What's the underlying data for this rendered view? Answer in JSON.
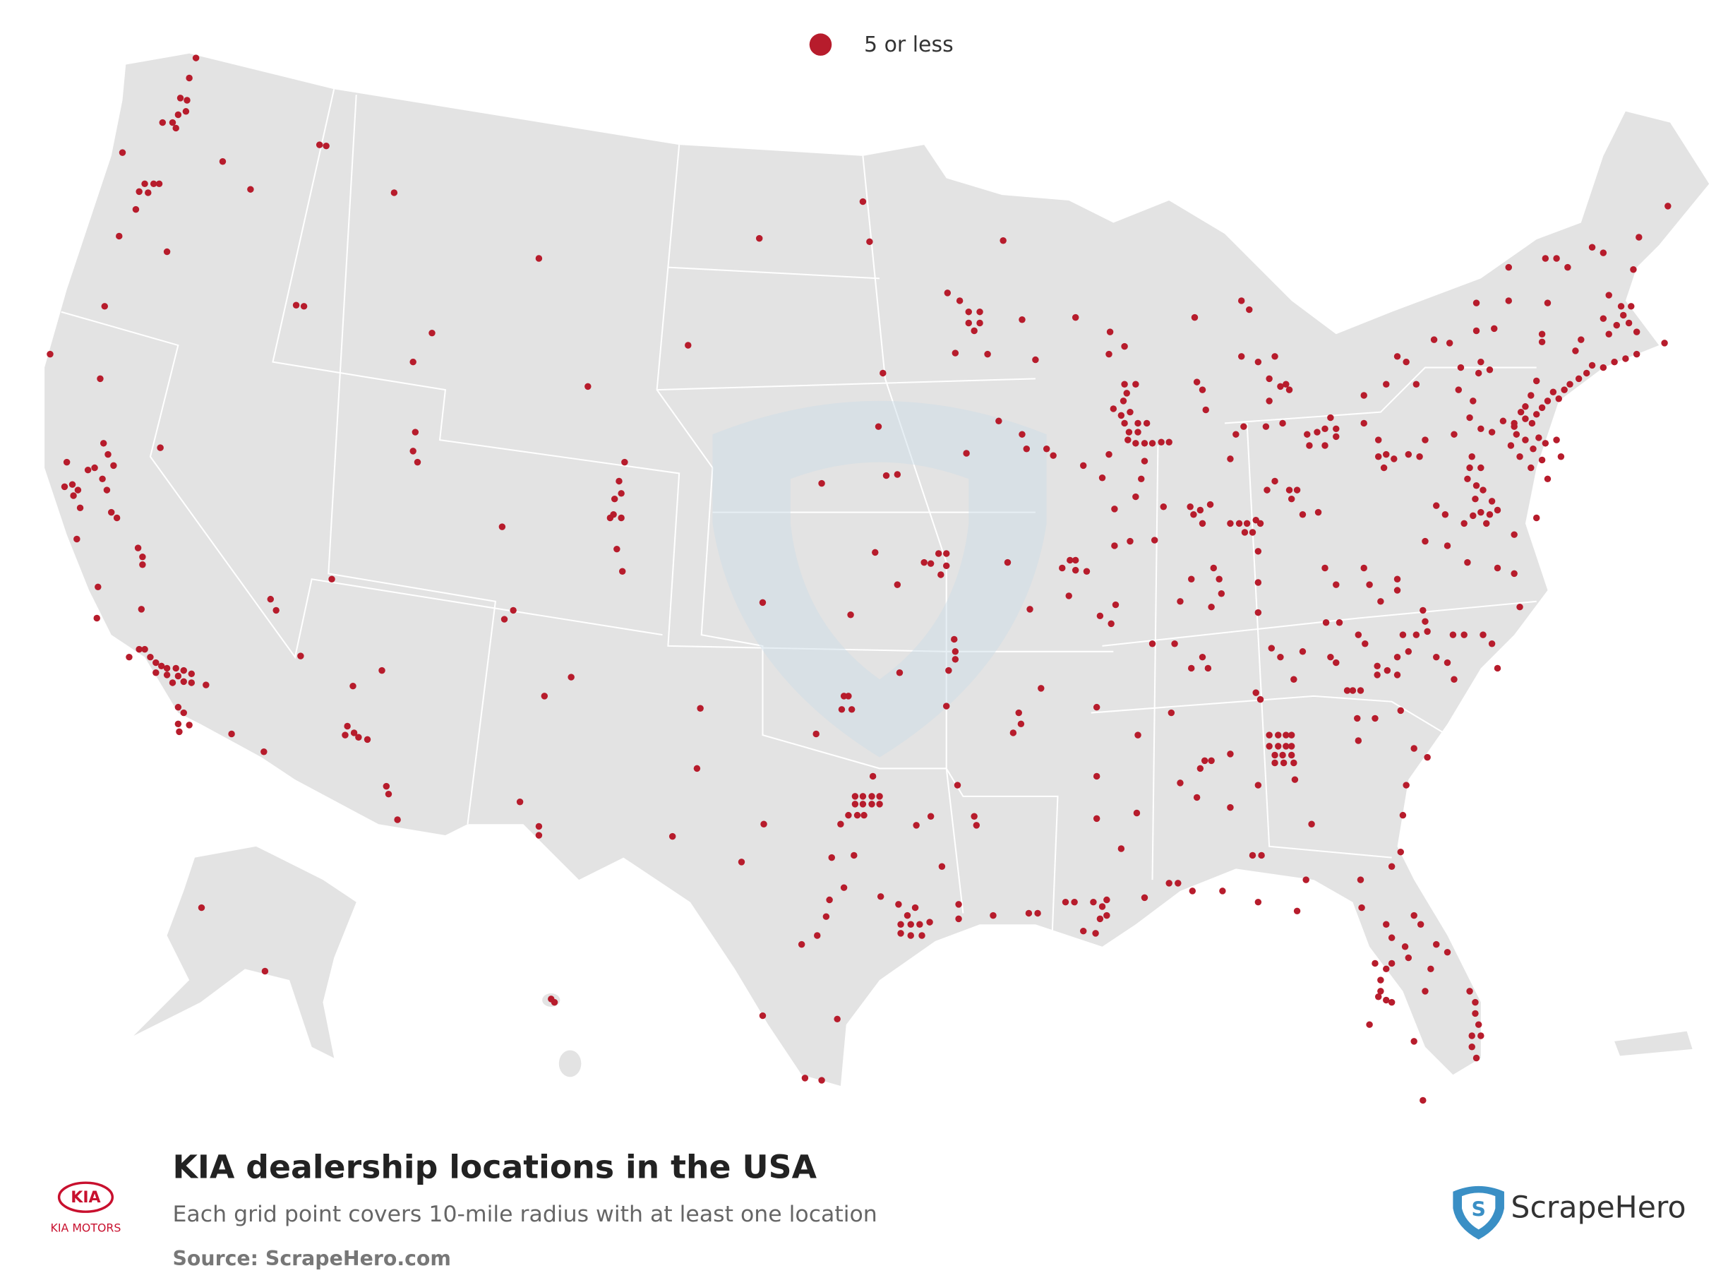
{
  "legend": {
    "label": "5 or less"
  },
  "title": "KIA dealership locations in the USA",
  "subtitle": "Each grid point covers 10-mile radius with at least one location",
  "source": "Source: ScrapeHero.com",
  "kia_logo": {
    "mark": "KIA",
    "caption": "KIA MOTORS"
  },
  "brand": "ScrapeHero"
}
